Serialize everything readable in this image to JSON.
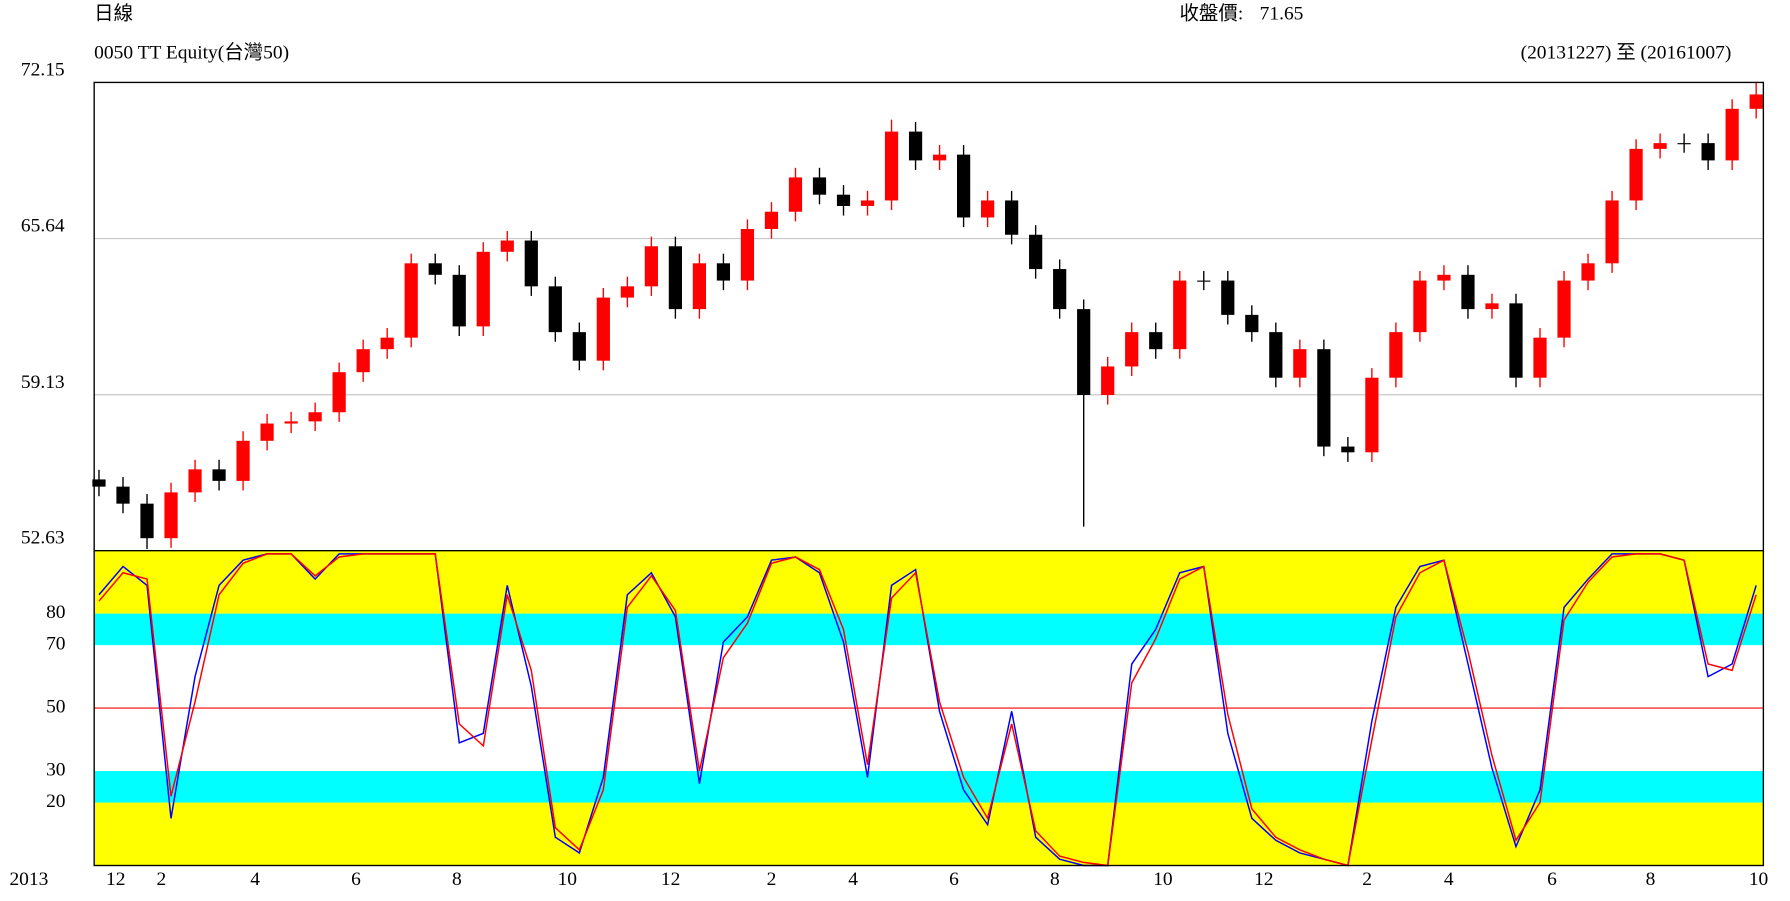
{
  "chart_data": [
    {
      "type": "candlestick",
      "title": "日線",
      "subtitle": "0050 TT Equity(台灣50)",
      "close_label": "收盤價:",
      "last_close": 71.65,
      "date_range": "(20131227) 至 (20161007)",
      "x": [
        2,
        12,
        22,
        32,
        42,
        52,
        62,
        72,
        82,
        92,
        102,
        112,
        122,
        132,
        142,
        152,
        162,
        172,
        182,
        192,
        202,
        212,
        222,
        232,
        242,
        252,
        262,
        272,
        282,
        292,
        302,
        312,
        322,
        332,
        342,
        352,
        362,
        372,
        382,
        392,
        402,
        412,
        422,
        432,
        442,
        452,
        462,
        472,
        482,
        492,
        502,
        512,
        522,
        532,
        542,
        552,
        562,
        572,
        582,
        592,
        602,
        612,
        622,
        632,
        642,
        652,
        662,
        672,
        682,
        692
      ],
      "open": [
        55.6,
        55.3,
        54.59,
        53.15,
        55.06,
        56.02,
        55.54,
        57.21,
        57.93,
        58.02,
        58.4,
        60.07,
        61.03,
        61.51,
        64.61,
        64.13,
        61.98,
        65.09,
        65.56,
        63.65,
        61.74,
        60.55,
        63.18,
        63.65,
        65.32,
        62.7,
        64.61,
        63.89,
        66.04,
        66.76,
        68.19,
        67.47,
        67.0,
        67.23,
        70.1,
        68.9,
        69.14,
        66.52,
        67.23,
        65.8,
        64.37,
        62.7,
        59.12,
        60.31,
        61.74,
        61.03,
        63.89,
        63.89,
        62.46,
        61.74,
        59.84,
        61.03,
        56.97,
        56.73,
        59.84,
        61.74,
        63.89,
        64.13,
        62.7,
        62.94,
        59.84,
        61.51,
        63.89,
        64.61,
        67.23,
        69.38,
        69.62,
        69.62,
        68.9,
        71.05
      ],
      "high": [
        56.0,
        55.7,
        54.99,
        55.46,
        56.42,
        56.42,
        57.61,
        58.33,
        58.42,
        58.8,
        60.47,
        61.43,
        61.91,
        65.01,
        65.01,
        64.53,
        65.49,
        65.96,
        65.96,
        64.05,
        62.14,
        63.58,
        64.05,
        65.72,
        65.72,
        65.01,
        65.01,
        66.44,
        67.16,
        68.59,
        68.59,
        67.87,
        67.63,
        70.6,
        70.5,
        69.54,
        69.54,
        67.63,
        67.63,
        66.2,
        64.77,
        63.1,
        60.71,
        62.14,
        62.14,
        64.29,
        64.29,
        64.29,
        62.86,
        62.14,
        61.43,
        61.43,
        57.37,
        60.24,
        62.14,
        64.29,
        64.53,
        64.53,
        63.34,
        63.34,
        61.91,
        64.29,
        65.01,
        67.63,
        69.78,
        70.02,
        70.02,
        70.02,
        71.45,
        72.15
      ],
      "low": [
        54.9,
        54.19,
        52.7,
        52.75,
        54.66,
        55.14,
        55.14,
        56.81,
        57.53,
        57.62,
        58.0,
        59.67,
        60.63,
        61.11,
        63.73,
        61.58,
        61.58,
        64.69,
        63.25,
        61.34,
        60.15,
        60.15,
        62.78,
        63.25,
        62.3,
        62.3,
        63.49,
        63.49,
        65.64,
        66.36,
        67.07,
        66.6,
        66.6,
        66.83,
        68.5,
        68.5,
        66.12,
        66.12,
        65.4,
        63.97,
        62.3,
        53.63,
        58.72,
        59.91,
        60.63,
        60.63,
        63.49,
        62.06,
        61.34,
        59.44,
        59.44,
        56.57,
        56.33,
        56.33,
        59.44,
        61.34,
        63.49,
        62.3,
        62.3,
        59.44,
        59.44,
        61.11,
        63.49,
        64.21,
        66.83,
        68.98,
        69.22,
        68.5,
        68.5,
        70.65
      ],
      "close": [
        55.3,
        54.59,
        53.15,
        55.06,
        56.02,
        55.54,
        57.21,
        57.93,
        58.02,
        58.4,
        60.07,
        61.03,
        61.51,
        64.61,
        64.13,
        61.98,
        65.09,
        65.56,
        63.65,
        61.74,
        60.55,
        63.18,
        63.65,
        65.32,
        62.7,
        64.61,
        63.89,
        66.04,
        66.76,
        68.19,
        67.47,
        67.0,
        67.23,
        70.1,
        68.9,
        69.14,
        66.52,
        67.23,
        65.8,
        64.37,
        62.7,
        59.12,
        60.31,
        61.74,
        61.03,
        63.89,
        63.89,
        62.46,
        61.74,
        59.84,
        61.03,
        56.97,
        56.73,
        59.84,
        61.74,
        63.89,
        64.13,
        62.7,
        62.94,
        59.84,
        61.51,
        63.89,
        64.61,
        67.23,
        69.38,
        69.62,
        69.62,
        68.9,
        71.05,
        71.65
      ],
      "up_color": "#ff0000",
      "down_color": "#000000",
      "xlim": [
        0,
        695
      ],
      "ylim": [
        52.63,
        72.15
      ],
      "yticks": [
        52.63,
        59.13,
        65.64,
        72.15
      ],
      "grid": true
    },
    {
      "type": "line",
      "x": [
        2,
        12,
        22,
        32,
        42,
        52,
        62,
        72,
        82,
        92,
        102,
        112,
        122,
        132,
        142,
        152,
        162,
        172,
        182,
        192,
        202,
        212,
        222,
        232,
        242,
        252,
        262,
        272,
        282,
        292,
        302,
        312,
        322,
        332,
        342,
        352,
        362,
        372,
        382,
        392,
        402,
        412,
        422,
        432,
        442,
        452,
        462,
        472,
        482,
        492,
        502,
        512,
        522,
        532,
        542,
        552,
        562,
        572,
        582,
        592,
        602,
        612,
        622,
        632,
        642,
        652,
        662,
        672,
        682,
        692
      ],
      "series": [
        {
          "color": "#0000ff",
          "values": [
            86,
            95,
            89,
            15,
            60,
            89,
            97,
            99,
            99,
            91,
            99,
            99,
            99,
            99,
            99,
            39,
            42,
            89,
            57,
            9,
            4,
            28,
            86,
            93,
            79,
            26,
            71,
            79,
            97,
            98,
            93,
            71,
            28,
            89,
            94,
            49,
            24,
            13,
            49,
            9,
            2,
            0,
            0,
            64,
            75,
            93,
            95,
            42,
            15,
            8,
            4,
            2,
            0,
            46,
            82,
            95,
            97,
            64,
            31,
            6,
            24,
            82,
            91,
            99,
            99,
            99,
            97,
            60,
            64,
            89
          ]
        },
        {
          "color": "#ff0000",
          "values": [
            84,
            93,
            91,
            22,
            52,
            86,
            96,
            99,
            99,
            92,
            98,
            99,
            99,
            99,
            99,
            45,
            38,
            86,
            62,
            12,
            5,
            24,
            82,
            92,
            81,
            30,
            66,
            77,
            96,
            98,
            94,
            75,
            32,
            85,
            93,
            52,
            28,
            15,
            45,
            11,
            3,
            1,
            0,
            58,
            72,
            91,
            95,
            48,
            18,
            9,
            5,
            2,
            0,
            40,
            79,
            93,
            97,
            68,
            35,
            8,
            20,
            78,
            90,
            98,
            99,
            99,
            97,
            64,
            62,
            86
          ]
        }
      ],
      "bands": [
        {
          "range": [
            80,
            100
          ],
          "color": "#ffff00"
        },
        {
          "range": [
            0,
            20
          ],
          "color": "#ffff00"
        },
        {
          "range": [
            70,
            80
          ],
          "color": "#00ffff"
        },
        {
          "range": [
            20,
            30
          ],
          "color": "#00ffff"
        }
      ],
      "reference_line": 50,
      "reference_color": "#ff0000",
      "xlim": [
        0,
        695
      ],
      "ylim": [
        0,
        100
      ],
      "yticks": [
        20,
        30,
        50,
        70,
        80
      ],
      "year_label": "2013",
      "xticks": [
        {
          "value": 9,
          "label": "12"
        },
        {
          "value": 28,
          "label": "2"
        },
        {
          "value": 67,
          "label": "4"
        },
        {
          "value": 109,
          "label": "6"
        },
        {
          "value": 151,
          "label": "8"
        },
        {
          "value": 197,
          "label": "10"
        },
        {
          "value": 240,
          "label": "12"
        },
        {
          "value": 282,
          "label": "2"
        },
        {
          "value": 316,
          "label": "4"
        },
        {
          "value": 358,
          "label": "6"
        },
        {
          "value": 400,
          "label": "8"
        },
        {
          "value": 445,
          "label": "10"
        },
        {
          "value": 487,
          "label": "12"
        },
        {
          "value": 530,
          "label": "2"
        },
        {
          "value": 564,
          "label": "4"
        },
        {
          "value": 607,
          "label": "6"
        },
        {
          "value": 648,
          "label": "8"
        },
        {
          "value": 693,
          "label": "10"
        }
      ]
    }
  ]
}
